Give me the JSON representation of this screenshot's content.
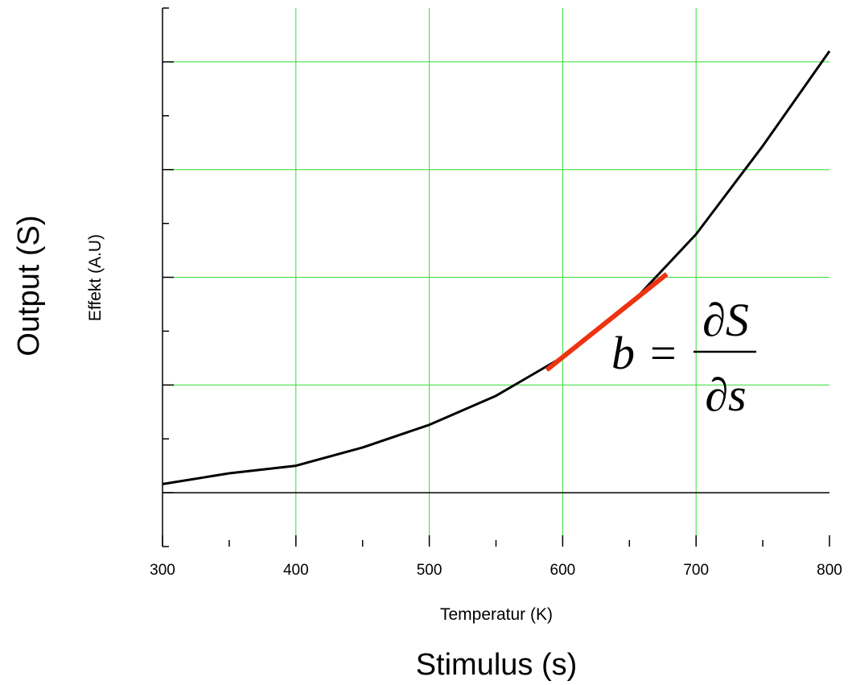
{
  "chart_data": {
    "type": "line",
    "title": "",
    "xlabel": "Temperatur (K)",
    "xlabel_secondary": "Stimulus (s)",
    "ylabel": "Effekt (A.U)",
    "ylabel_secondary": "Output (S)",
    "xlim": [
      300,
      800
    ],
    "x_ticks": [
      300,
      400,
      500,
      600,
      700,
      800
    ],
    "x_minor_step": 50,
    "ylim": [
      -0.5,
      4.5
    ],
    "y_major_step": 1,
    "y_tick_labels_shown": false,
    "grid": true,
    "grid_color": "#33dd33",
    "curve_color": "#000000",
    "tangent_color": "#ee3311",
    "series": [
      {
        "x": [
          300,
          350,
          400,
          450,
          500,
          550,
          600,
          650,
          700,
          750,
          800
        ],
        "y": [
          0.08,
          0.18,
          0.25,
          0.42,
          0.63,
          0.9,
          1.26,
          1.74,
          2.4,
          3.22,
          4.1
        ]
      }
    ],
    "tangent": {
      "x": [
        588,
        678
      ],
      "y": [
        1.14,
        2.03
      ]
    },
    "annotation": {
      "lhs": "b",
      "equals": "=",
      "numerator": "∂S",
      "denominator": "∂s"
    }
  }
}
